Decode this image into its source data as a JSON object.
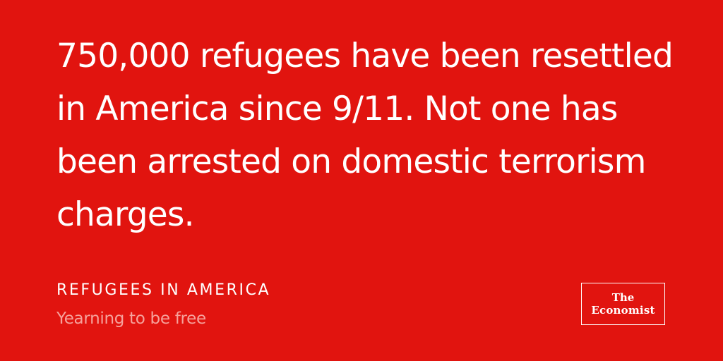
{
  "headline": "750,000 refugees have been resettled in America since 9/11. Not one has been arrested on domestic terrorism charges.",
  "section_label": "REFUGEES IN AMERICA",
  "subtitle": "Yearning to be free",
  "logo": {
    "line1": "The",
    "line2": "Economist"
  },
  "colors": {
    "background": "#e1140f",
    "text": "#ffffff",
    "subtitle": "#f6a29c"
  }
}
